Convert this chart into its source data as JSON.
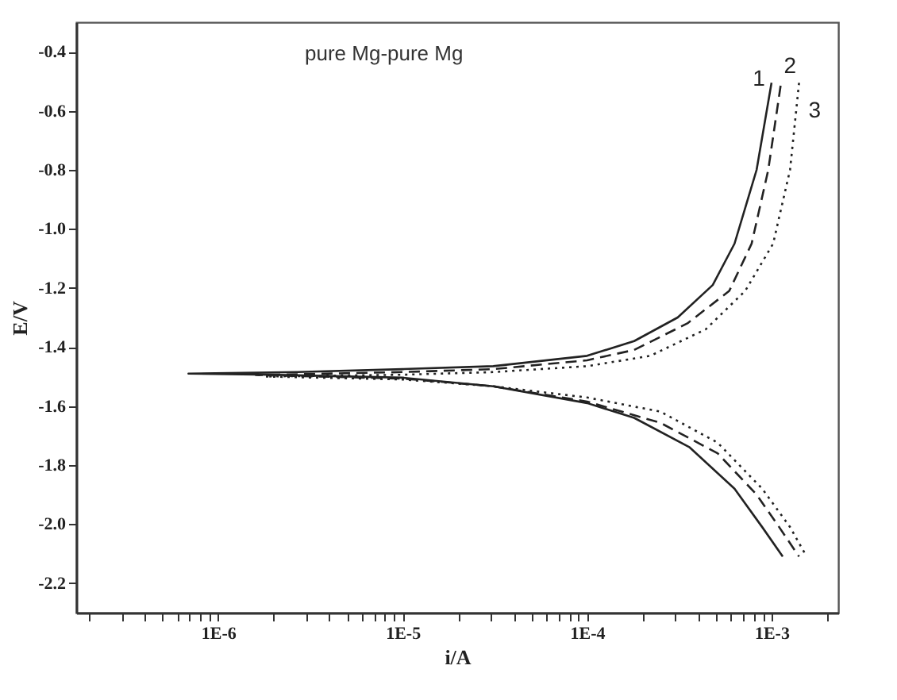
{
  "chart_data": {
    "type": "line",
    "xlabel": "i/A",
    "ylabel": "E/V",
    "annotations": [
      "pure Mg-pure Mg"
    ],
    "log": "x",
    "grid": false,
    "marker": "none",
    "xlim": [
      1.7e-07,
      0.0023
    ],
    "ylim": [
      -2.3,
      -0.3
    ],
    "xticks": [
      {
        "value": 2e-07,
        "label": null
      },
      {
        "value": 3e-07,
        "label": null
      },
      {
        "value": 4e-07,
        "label": null
      },
      {
        "value": 5e-07,
        "label": null
      },
      {
        "value": 6e-07,
        "label": null
      },
      {
        "value": 7e-07,
        "label": null
      },
      {
        "value": 8e-07,
        "label": null
      },
      {
        "value": 9e-07,
        "label": null
      },
      {
        "value": 1e-06,
        "label": "1E-6"
      },
      {
        "value": 2e-06,
        "label": null
      },
      {
        "value": 3e-06,
        "label": null
      },
      {
        "value": 4e-06,
        "label": null
      },
      {
        "value": 5e-06,
        "label": null
      },
      {
        "value": 6e-06,
        "label": null
      },
      {
        "value": 7e-06,
        "label": null
      },
      {
        "value": 8e-06,
        "label": null
      },
      {
        "value": 9e-06,
        "label": null
      },
      {
        "value": 1e-05,
        "label": "1E-5"
      },
      {
        "value": 2e-05,
        "label": null
      },
      {
        "value": 3e-05,
        "label": null
      },
      {
        "value": 4e-05,
        "label": null
      },
      {
        "value": 5e-05,
        "label": null
      },
      {
        "value": 6e-05,
        "label": null
      },
      {
        "value": 7e-05,
        "label": null
      },
      {
        "value": 8e-05,
        "label": null
      },
      {
        "value": 9e-05,
        "label": null
      },
      {
        "value": 0.0001,
        "label": "1E-4"
      },
      {
        "value": 0.0002,
        "label": null
      },
      {
        "value": 0.0003,
        "label": null
      },
      {
        "value": 0.0004,
        "label": null
      },
      {
        "value": 0.0005,
        "label": null
      },
      {
        "value": 0.0006,
        "label": null
      },
      {
        "value": 0.0007,
        "label": null
      },
      {
        "value": 0.0008,
        "label": null
      },
      {
        "value": 0.0009,
        "label": null
      },
      {
        "value": 0.001,
        "label": "1E-3"
      },
      {
        "value": 0.002,
        "label": null
      }
    ],
    "yticks": [
      -2.2,
      {
        "value": -2.0,
        "label": "-2.0"
      },
      -1.8,
      -1.6,
      -1.4,
      -1.2,
      {
        "value": -1.0,
        "label": "-1.0"
      },
      -0.8,
      -0.6,
      -0.4
    ],
    "series": [
      {
        "name": "1",
        "color": "#222222",
        "line_style": "solid",
        "x": [
          0.001,
          0.00083,
          0.00063,
          0.00048,
          0.00031,
          0.00018,
          0.0001,
          3.1e-05,
          1e-05,
          2.7e-06,
          6.9e-07,
          1.9e-06,
          1e-05,
          3.1e-05,
          0.0001,
          0.00018,
          0.00036,
          0.00063,
          0.00089,
          0.00115
        ],
        "values": [
          -0.505,
          -0.8,
          -1.05,
          -1.19,
          -1.3,
          -1.38,
          -1.43,
          -1.465,
          -1.475,
          -1.485,
          -1.49,
          -1.494,
          -1.504,
          -1.533,
          -1.59,
          -1.64,
          -1.74,
          -1.88,
          -2.01,
          -2.11
        ]
      },
      {
        "name": "2",
        "color": "#222222",
        "line_style": "dashed",
        "x": [
          0.00112,
          0.00096,
          0.00078,
          0.00059,
          0.00035,
          0.00018,
          0.0001,
          3.1e-05,
          1e-05,
          1.6e-06,
          1e-05,
          3.1e-05,
          0.0001,
          0.00025,
          0.00051,
          0.00083,
          0.0011,
          0.00141
        ],
        "values": [
          -0.515,
          -0.8,
          -1.05,
          -1.21,
          -1.32,
          -1.41,
          -1.445,
          -1.475,
          -1.485,
          -1.495,
          -1.507,
          -1.533,
          -1.585,
          -1.657,
          -1.76,
          -1.9,
          -2.01,
          -2.11
        ]
      },
      {
        "name": "3",
        "color": "#222222",
        "line_style": "dotted",
        "x": [
          0.00141,
          0.00126,
          0.00102,
          0.00072,
          0.00044,
          0.00022,
          0.0001,
          3.1e-05,
          1e-05,
          1.8e-06,
          1e-05,
          3.1e-05,
          0.0001,
          0.00025,
          0.00051,
          0.00089,
          0.00126,
          0.00155
        ],
        "values": [
          -0.505,
          -0.8,
          -1.05,
          -1.21,
          -1.34,
          -1.43,
          -1.465,
          -1.485,
          -1.494,
          -1.5,
          -1.51,
          -1.533,
          -1.571,
          -1.619,
          -1.724,
          -1.88,
          -2.01,
          -2.11
        ]
      }
    ]
  }
}
